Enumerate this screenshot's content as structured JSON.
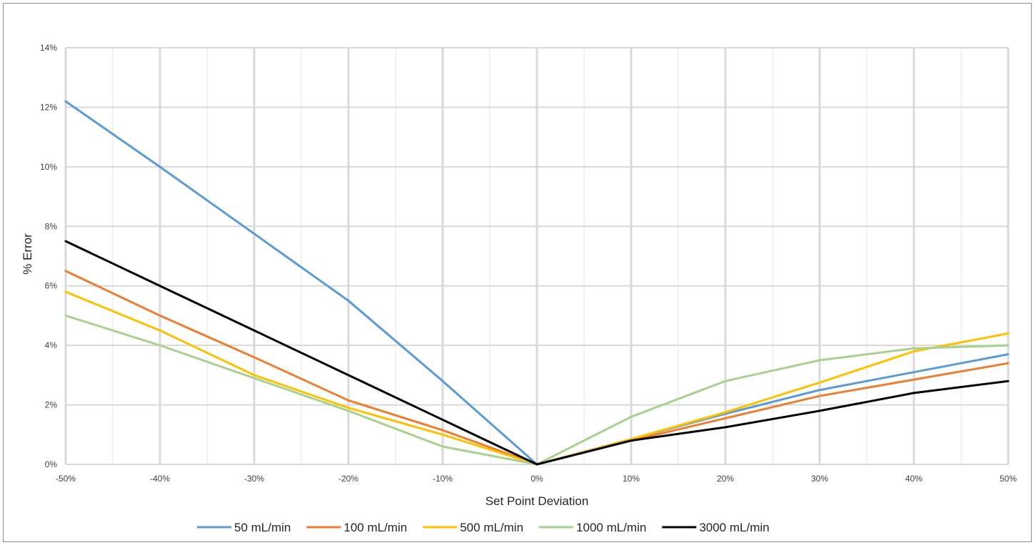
{
  "chart_data": {
    "type": "line",
    "title": "",
    "xlabel": "Set Point Deviation",
    "ylabel": "% Error",
    "x": [
      -50,
      -40,
      -30,
      -20,
      -10,
      0,
      10,
      20,
      30,
      40,
      50
    ],
    "x_tick_labels": [
      "-50%",
      "-40%",
      "-30%",
      "-20%",
      "-10%",
      "0%",
      "10%",
      "20%",
      "30%",
      "40%",
      "50%"
    ],
    "y_tick_labels": [
      "0%",
      "2%",
      "4%",
      "6%",
      "8%",
      "10%",
      "12%",
      "14%"
    ],
    "xlim": [
      -50,
      50
    ],
    "ylim": [
      0,
      14
    ],
    "grid": true,
    "legend_position": "bottom",
    "series": [
      {
        "name": "50 mL/min",
        "color": "#5b9bd5",
        "values": [
          12.2,
          10.0,
          7.75,
          5.5,
          2.8,
          0,
          0.85,
          1.7,
          2.5,
          3.1,
          3.7
        ]
      },
      {
        "name": "100 mL/min",
        "color": "#ed7d31",
        "values": [
          6.5,
          5.0,
          3.6,
          2.15,
          1.15,
          0,
          0.8,
          1.55,
          2.3,
          2.85,
          3.4
        ]
      },
      {
        "name": "500 mL/min",
        "color": "#ffc000",
        "values": [
          5.8,
          4.5,
          3.0,
          1.9,
          1.0,
          0,
          0.85,
          1.75,
          2.75,
          3.8,
          4.4
        ]
      },
      {
        "name": "1000 mL/min",
        "color": "#a9d18e",
        "values": [
          5.0,
          4.0,
          2.9,
          1.8,
          0.6,
          0,
          1.6,
          2.8,
          3.5,
          3.9,
          4.0
        ]
      },
      {
        "name": "3000 mL/min",
        "color": "#000000",
        "values": [
          7.5,
          6.0,
          4.5,
          3.0,
          1.5,
          0,
          0.8,
          1.25,
          1.8,
          2.4,
          2.8
        ]
      }
    ]
  }
}
